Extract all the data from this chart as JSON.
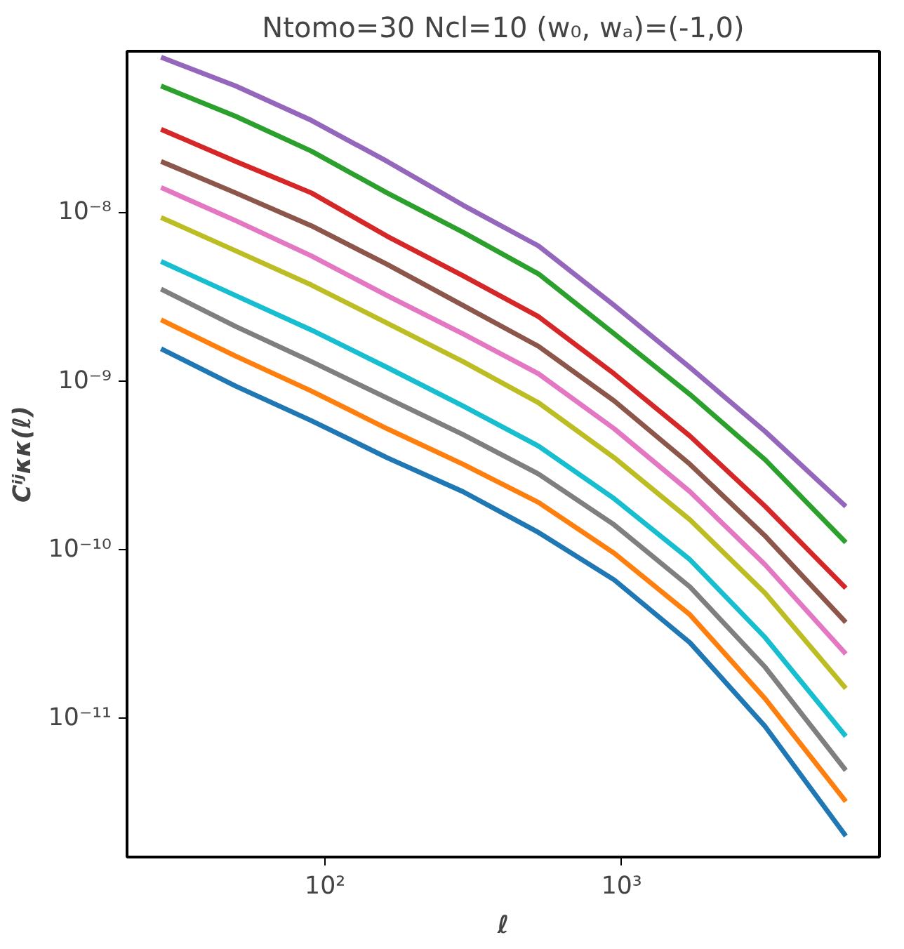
{
  "chart_data": {
    "type": "line",
    "title": "Ntomo=30 Ncl=10 (w₀, wₐ)=(-1,0)",
    "xlabel": "ℓ",
    "ylabel": "Cⁱʲκκ(ℓ)",
    "log": "xy",
    "grid": false,
    "marker": "none",
    "line_style": "solid",
    "x": [
      28,
      50,
      90,
      162,
      292,
      525,
      944,
      1700,
      3050,
      5700
    ],
    "xlim": [
      21.5,
      7400
    ],
    "ylim": [
      1.5e-12,
      9e-08
    ],
    "xticks": [
      {
        "value": 100,
        "label": "10²"
      },
      {
        "value": 1000,
        "label": "10³"
      }
    ],
    "yticks": [
      {
        "value": 1e-11,
        "label": "10⁻¹¹"
      },
      {
        "value": 1e-10,
        "label": "10⁻¹⁰"
      },
      {
        "value": 1e-09,
        "label": "10⁻⁹"
      },
      {
        "value": 1e-08,
        "label": "10⁻⁸"
      }
    ],
    "series": [
      {
        "color": "#1f77b4",
        "values": [
          1.55e-09,
          9.3e-10,
          5.8e-10,
          3.5e-10,
          2.2e-10,
          1.26e-10,
          6.6e-11,
          2.8e-11,
          8.9e-12,
          2e-12
        ]
      },
      {
        "color": "#ff7f0e",
        "values": [
          2.3e-09,
          1.4e-09,
          8.7e-10,
          5.2e-10,
          3.2e-10,
          1.9e-10,
          9.5e-11,
          4.1e-11,
          1.3e-11,
          3.2e-12
        ]
      },
      {
        "color": "#7f7f7f",
        "values": [
          3.5e-09,
          2.1e-09,
          1.3e-09,
          7.9e-10,
          4.8e-10,
          2.8e-10,
          1.4e-10,
          6e-11,
          2e-11,
          4.9e-12
        ]
      },
      {
        "color": "#17becf",
        "values": [
          5.1e-09,
          3.2e-09,
          2e-09,
          1.2e-09,
          7.1e-10,
          4.1e-10,
          2e-10,
          8.7e-11,
          3e-11,
          7.8e-12
        ]
      },
      {
        "color": "#bcbd22",
        "values": [
          9.3e-09,
          5.9e-09,
          3.7e-09,
          2.2e-09,
          1.3e-09,
          7.4e-10,
          3.5e-10,
          1.5e-10,
          5.5e-11,
          1.5e-11
        ]
      },
      {
        "color": "#e377c2",
        "values": [
          1.4e-08,
          8.9e-09,
          5.5e-09,
          3.2e-09,
          1.9e-09,
          1.1e-09,
          5.2e-10,
          2.2e-10,
          8.1e-11,
          2.4e-11
        ]
      },
      {
        "color": "#8c564b",
        "values": [
          2e-08,
          1.3e-08,
          8.3e-09,
          4.9e-09,
          2.8e-09,
          1.6e-09,
          7.6e-10,
          3.2e-10,
          1.2e-10,
          3.7e-11
        ]
      },
      {
        "color": "#d62728",
        "values": [
          3.1e-08,
          2e-08,
          1.3e-08,
          7.2e-09,
          4.2e-09,
          2.4e-09,
          1.1e-09,
          4.7e-10,
          1.8e-10,
          5.9e-11
        ]
      },
      {
        "color": "#2ca02c",
        "values": [
          5.6e-08,
          3.7e-08,
          2.3e-08,
          1.3e-08,
          7.6e-09,
          4.3e-09,
          1.9e-09,
          8.3e-10,
          3.4e-10,
          1.1e-10
        ]
      },
      {
        "color": "#9467bd",
        "values": [
          8.3e-08,
          5.6e-08,
          3.5e-08,
          2e-08,
          1.1e-08,
          6.3e-09,
          2.8e-09,
          1.2e-09,
          5e-10,
          1.8e-10
        ]
      }
    ]
  }
}
